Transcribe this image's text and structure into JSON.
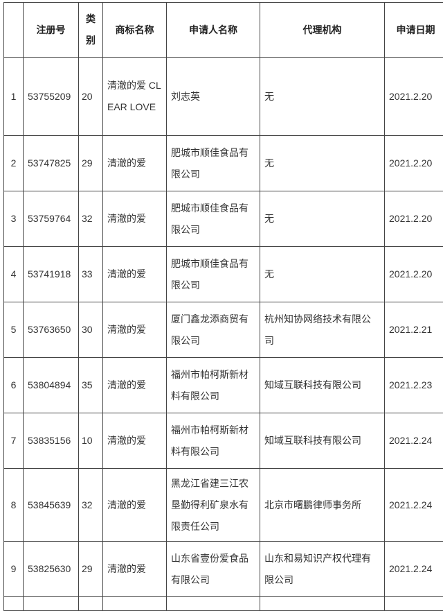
{
  "headers": [
    "",
    "注册号",
    "类别",
    "商标名称",
    "申请人名称",
    "代理机构",
    "申请日期"
  ],
  "rows": [
    {
      "no": "1",
      "reg": "53755209",
      "cls": "20",
      "mark": "清澈的爱 CLEAR LOVE",
      "applicant": "刘志英",
      "agent": "无",
      "date": "2021.2.20"
    },
    {
      "no": "2",
      "reg": "53747825",
      "cls": "29",
      "mark": "清澈的爱",
      "applicant": "肥城市顺佳食品有限公司",
      "agent": "无",
      "date": "2021.2.20"
    },
    {
      "no": "3",
      "reg": "53759764",
      "cls": "32",
      "mark": "清澈的爱",
      "applicant": "肥城市顺佳食品有限公司",
      "agent": "无",
      "date": "2021.2.20"
    },
    {
      "no": "4",
      "reg": "53741918",
      "cls": "33",
      "mark": "清澈的爱",
      "applicant": "肥城市顺佳食品有限公司",
      "agent": "无",
      "date": "2021.2.20"
    },
    {
      "no": "5",
      "reg": "53763650",
      "cls": "30",
      "mark": "清澈的爱",
      "applicant": "厦门鑫龙添商贸有限公司",
      "agent": "杭州知协网络技术有限公司",
      "date": "2021.2.21"
    },
    {
      "no": "6",
      "reg": "53804894",
      "cls": "35",
      "mark": "清澈的爱",
      "applicant": "福州市帕柯斯新材料有限公司",
      "agent": "知域互联科技有限公司",
      "date": "2021.2.23"
    },
    {
      "no": "7",
      "reg": "53835156",
      "cls": "10",
      "mark": "清澈的爱",
      "applicant": "福州市帕柯斯新材料有限公司",
      "agent": "知域互联科技有限公司",
      "date": "2021.2.24"
    },
    {
      "no": "8",
      "reg": "53845639",
      "cls": "32",
      "mark": "清澈的爱",
      "applicant": "黑龙江省建三江农垦勤得利矿泉水有限责任公司",
      "agent": "北京市曙鹏律师事务所",
      "date": "2021.2.24"
    },
    {
      "no": "9",
      "reg": "53825630",
      "cls": "29",
      "mark": "清澈的爱",
      "applicant": "山东省壹份爱食品有限公司",
      "agent": "山东和易知识产权代理有限公司",
      "date": "2021.2.24"
    }
  ]
}
